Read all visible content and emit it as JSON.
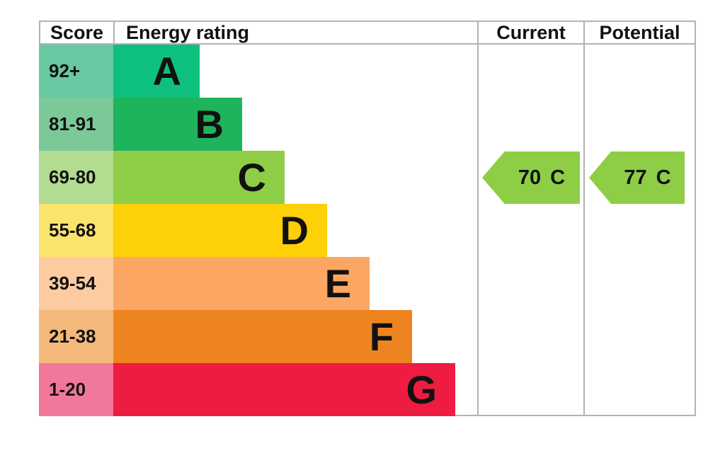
{
  "header": {
    "score": "Score",
    "energy_rating": "Energy rating",
    "current": "Current",
    "potential": "Potential"
  },
  "chart_data": {
    "type": "bar",
    "description": "EPC energy efficiency rating chart with score bands A-G, current and potential ratings",
    "columns": [
      "Score",
      "Energy rating",
      "Current",
      "Potential"
    ],
    "bands": [
      {
        "letter": "A",
        "score_range": "92+",
        "color": "#0dc07d",
        "score_bg": "#69c8a1"
      },
      {
        "letter": "B",
        "score_range": "81-91",
        "color": "#1eb45b",
        "score_bg": "#7bc899"
      },
      {
        "letter": "C",
        "score_range": "69-80",
        "color": "#8dce46",
        "score_bg": "#b2dc90"
      },
      {
        "letter": "D",
        "score_range": "55-68",
        "color": "#fdd008",
        "score_bg": "#fce36c"
      },
      {
        "letter": "E",
        "score_range": "39-54",
        "color": "#fba662",
        "score_bg": "#fdcba2"
      },
      {
        "letter": "F",
        "score_range": "21-38",
        "color": "#ee8420",
        "score_bg": "#f5b87b"
      },
      {
        "letter": "G",
        "score_range": "1-20",
        "color": "#ed1c40",
        "score_bg": "#f2789b"
      }
    ],
    "current": {
      "value": 70,
      "band": "C",
      "arrow_color": "#8dce46"
    },
    "potential": {
      "value": 77,
      "band": "C",
      "arrow_color": "#8dce46"
    }
  }
}
